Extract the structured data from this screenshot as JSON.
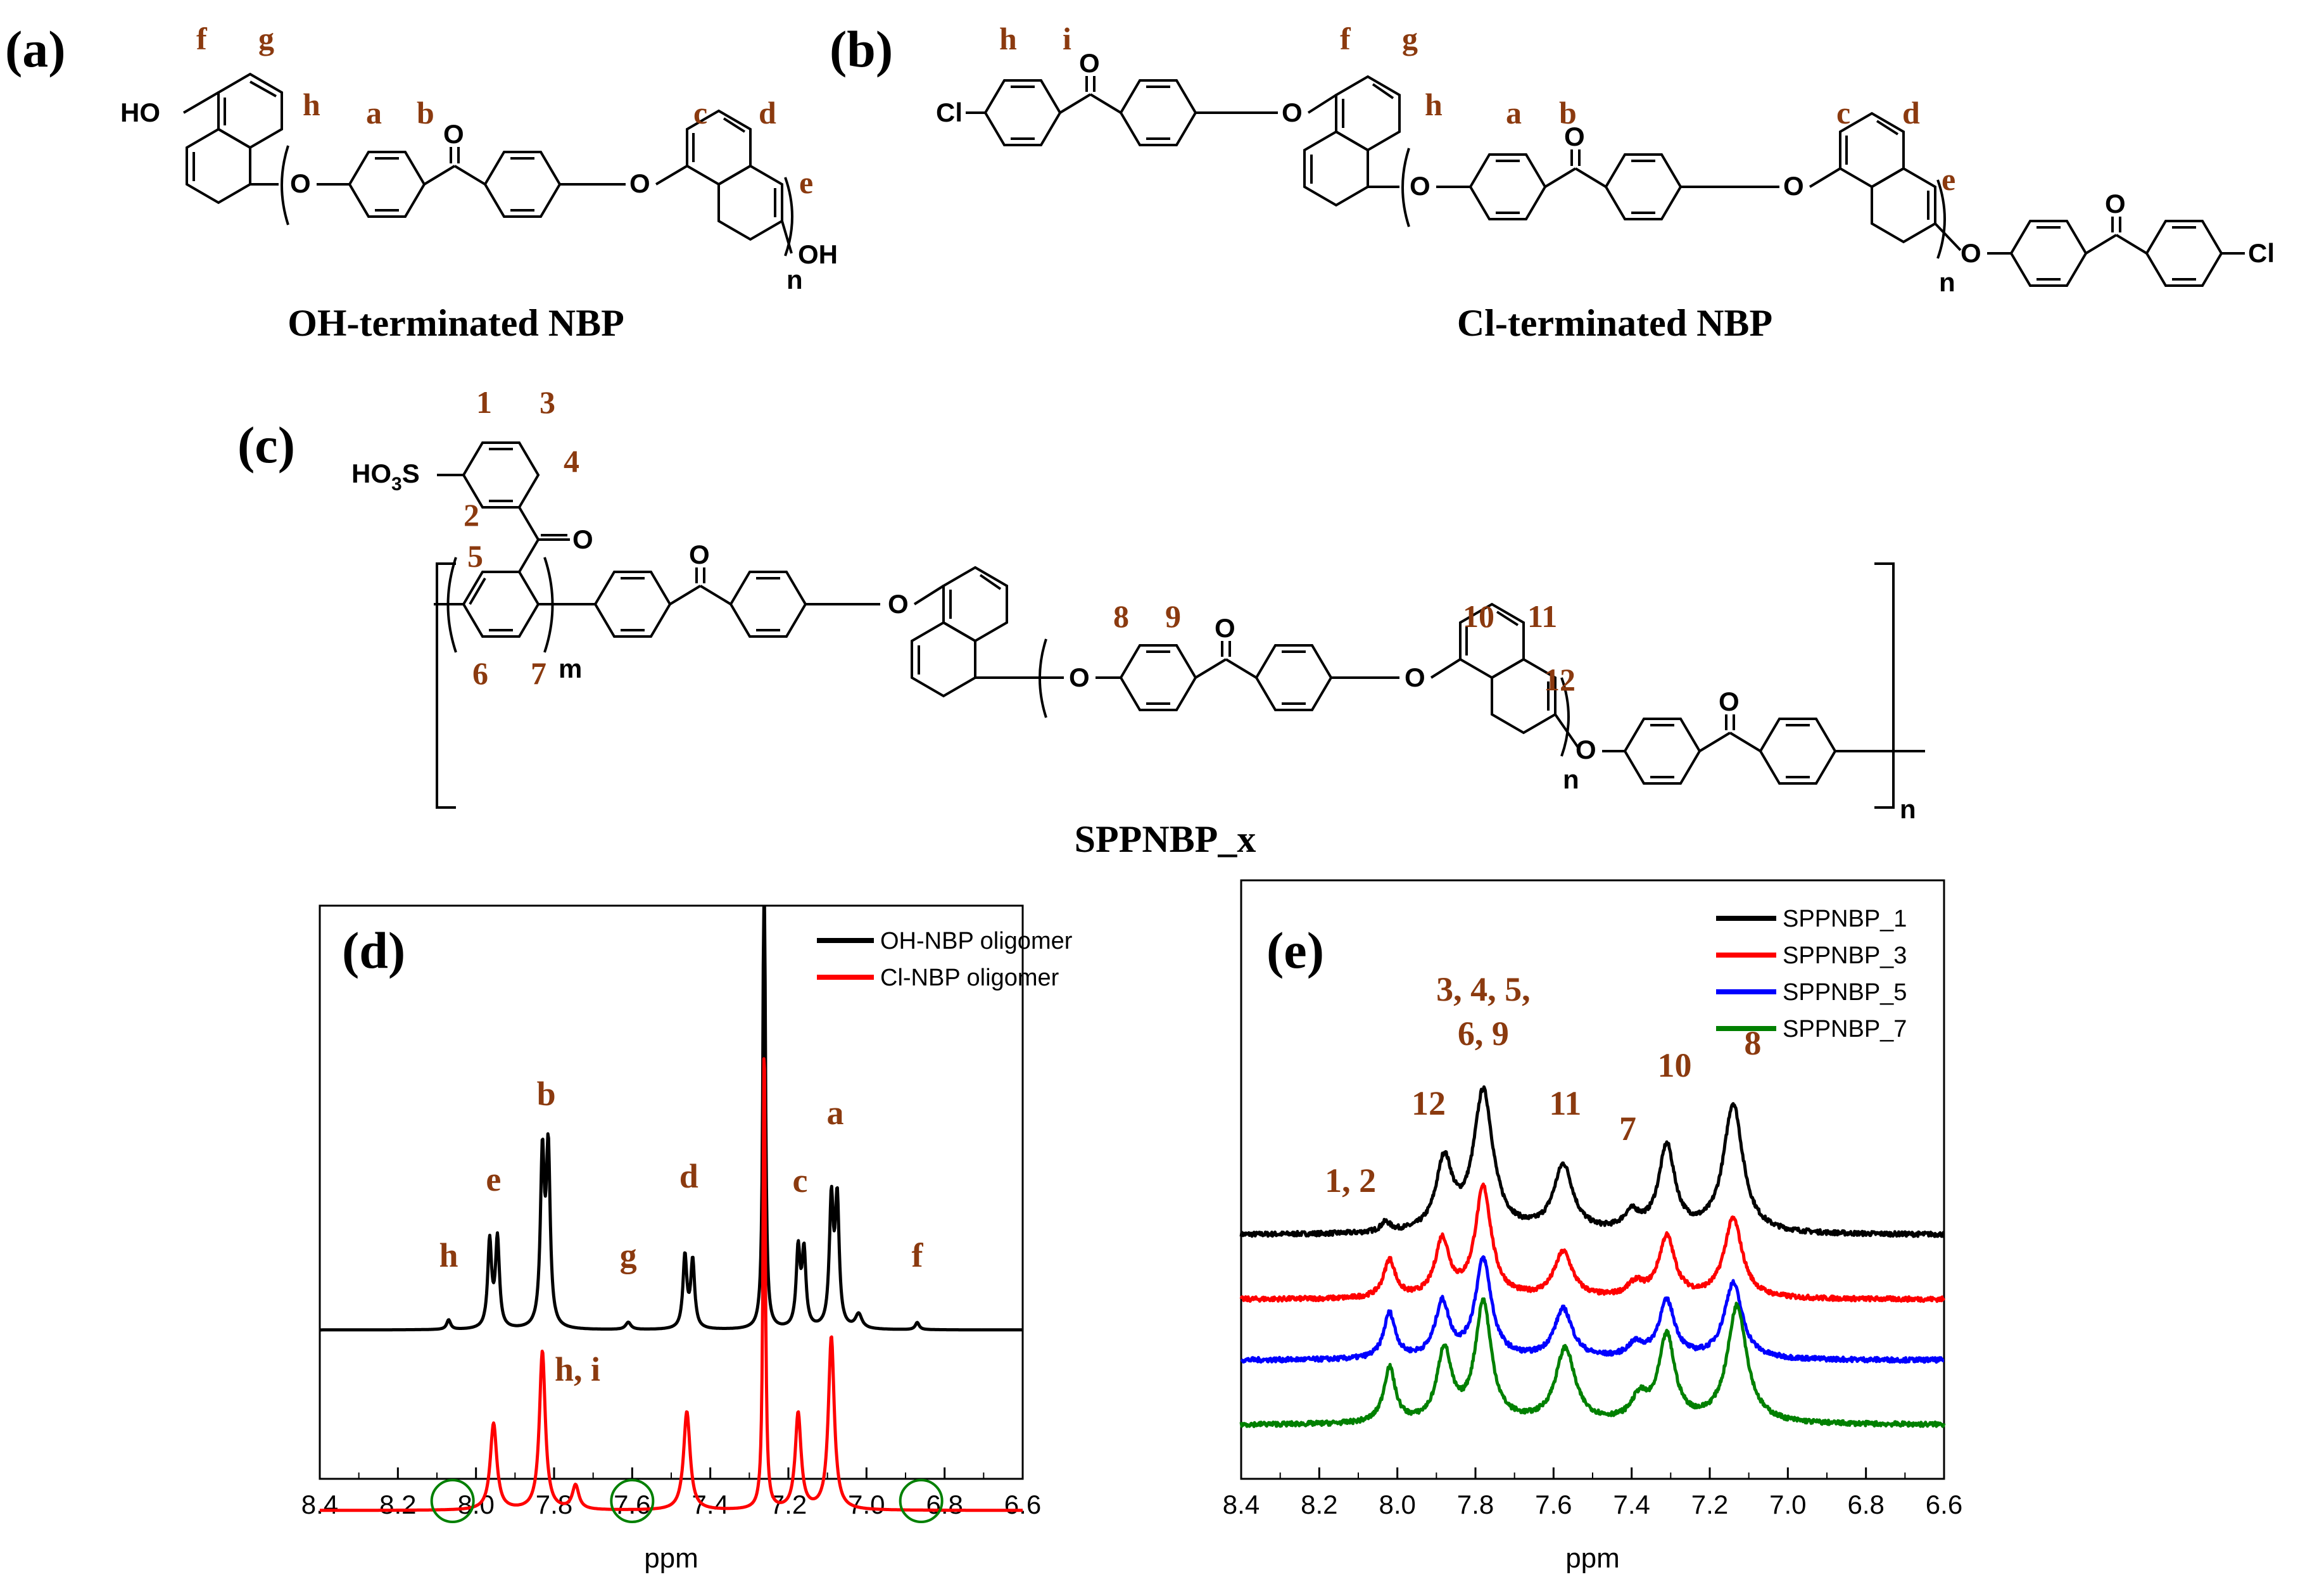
{
  "panels": {
    "a": {
      "label": "(a)",
      "name": "OH-terminated NBP",
      "atoms": [
        "f",
        "g",
        "h",
        "a",
        "b",
        "c",
        "d",
        "e"
      ],
      "groups": {
        "ho": "HO",
        "oh": "OH",
        "o": "O",
        "n": "n"
      }
    },
    "b": {
      "label": "(b)",
      "name": "Cl-terminated NBP",
      "atoms": [
        "h",
        "i",
        "f",
        "g",
        "h",
        "a",
        "b",
        "c",
        "d",
        "e"
      ],
      "groups": {
        "cl": "Cl",
        "o": "O",
        "n": "n"
      }
    },
    "c": {
      "label": "(c)",
      "name": "SPPNBP_x",
      "atoms": [
        "1",
        "3",
        "4",
        "2",
        "5",
        "6",
        "7",
        "8",
        "9",
        "10",
        "11",
        "12"
      ],
      "groups": {
        "so3h": "HO",
        "so3h_sub": "3",
        "so3h_s": "S",
        "o": "O",
        "m": "m",
        "n": "n"
      }
    }
  },
  "chart_data": [
    {
      "type": "line",
      "panel": "(d)",
      "xlabel": "ppm",
      "ylabel": "",
      "xlim": [
        8.4,
        6.6
      ],
      "x_reversed": true,
      "xticks": [
        "8.4",
        "8.2",
        "8.0",
        "7.8",
        "7.6",
        "7.4",
        "7.2",
        "7.0",
        "6.8",
        "6.6"
      ],
      "legend": "top-right",
      "series": [
        {
          "name": "OH-NBP oligomer",
          "color": "#000000",
          "baseline": 0.0,
          "peaks": [
            {
              "ppm": 8.07,
              "height": 0.04,
              "width": 0.006
            },
            {
              "ppm": 7.965,
              "height": 0.36,
              "width": 0.006
            },
            {
              "ppm": 7.945,
              "height": 0.37,
              "width": 0.006
            },
            {
              "ppm": 7.83,
              "height": 0.7,
              "width": 0.006
            },
            {
              "ppm": 7.815,
              "height": 0.72,
              "width": 0.006
            },
            {
              "ppm": 7.61,
              "height": 0.03,
              "width": 0.008
            },
            {
              "ppm": 7.465,
              "height": 0.3,
              "width": 0.006
            },
            {
              "ppm": 7.445,
              "height": 0.28,
              "width": 0.006
            },
            {
              "ppm": 7.262,
              "height": 2.2,
              "width": 0.0035
            },
            {
              "ppm": 7.175,
              "height": 0.32,
              "width": 0.006
            },
            {
              "ppm": 7.16,
              "height": 0.31,
              "width": 0.006
            },
            {
              "ppm": 7.09,
              "height": 0.52,
              "width": 0.006
            },
            {
              "ppm": 7.075,
              "height": 0.52,
              "width": 0.006
            },
            {
              "ppm": 7.02,
              "height": 0.06,
              "width": 0.01
            },
            {
              "ppm": 6.87,
              "height": 0.03,
              "width": 0.006
            }
          ]
        },
        {
          "name": "Cl-NBP oligomer",
          "color": "#ff0000",
          "baseline": -0.75,
          "peaks": [
            {
              "ppm": 7.955,
              "height": 0.36,
              "width": 0.01
            },
            {
              "ppm": 7.83,
              "height": 0.66,
              "width": 0.009
            },
            {
              "ppm": 7.745,
              "height": 0.1,
              "width": 0.01
            },
            {
              "ppm": 7.46,
              "height": 0.41,
              "width": 0.01
            },
            {
              "ppm": 7.262,
              "height": 1.95,
              "width": 0.0035
            },
            {
              "ppm": 7.175,
              "height": 0.4,
              "width": 0.009
            },
            {
              "ppm": 7.09,
              "height": 0.72,
              "width": 0.009
            }
          ]
        }
      ],
      "annotations": [
        {
          "text": "h",
          "ppm": 8.07
        },
        {
          "text": "e",
          "ppm": 7.955
        },
        {
          "text": "b",
          "ppm": 7.82
        },
        {
          "text": "g",
          "ppm": 7.61
        },
        {
          "text": "d",
          "ppm": 7.455
        },
        {
          "text": "c",
          "ppm": 7.17
        },
        {
          "text": "a",
          "ppm": 7.08
        },
        {
          "text": "f",
          "ppm": 6.87
        },
        {
          "text": "h, i",
          "ppm": 7.74
        }
      ],
      "circles_ppm": [
        8.06,
        7.6,
        6.86
      ]
    },
    {
      "type": "line",
      "panel": "(e)",
      "xlabel": "ppm",
      "ylabel": "",
      "xlim": [
        8.4,
        6.6
      ],
      "x_reversed": true,
      "xticks": [
        "8.4",
        "8.2",
        "8.0",
        "7.8",
        "7.6",
        "7.4",
        "7.2",
        "7.0",
        "6.8",
        "6.6"
      ],
      "legend": "top-right",
      "series": [
        {
          "name": "SPPNBP_1",
          "color": "#000000",
          "offset": 1.0,
          "peaks": [
            {
              "ppm": 8.03,
              "height": 0.05,
              "width": 0.015
            },
            {
              "ppm": 7.88,
              "height": 0.37,
              "width": 0.025
            },
            {
              "ppm": 7.78,
              "height": 0.74,
              "width": 0.03
            },
            {
              "ppm": 7.575,
              "height": 0.35,
              "width": 0.03
            },
            {
              "ppm": 7.4,
              "height": 0.09,
              "width": 0.025
            },
            {
              "ppm": 7.31,
              "height": 0.45,
              "width": 0.025
            },
            {
              "ppm": 7.14,
              "height": 0.68,
              "width": 0.03
            }
          ]
        },
        {
          "name": "SPPNBP_3",
          "color": "#ff0000",
          "offset": 0.66,
          "peaks": [
            {
              "ppm": 8.02,
              "height": 0.2,
              "width": 0.018
            },
            {
              "ppm": 7.885,
              "height": 0.3,
              "width": 0.022
            },
            {
              "ppm": 7.78,
              "height": 0.58,
              "width": 0.025
            },
            {
              "ppm": 7.575,
              "height": 0.24,
              "width": 0.028
            },
            {
              "ppm": 7.39,
              "height": 0.07,
              "width": 0.025
            },
            {
              "ppm": 7.31,
              "height": 0.32,
              "width": 0.025
            },
            {
              "ppm": 7.14,
              "height": 0.42,
              "width": 0.028
            }
          ]
        },
        {
          "name": "SPPNBP_5",
          "color": "#0000ff",
          "offset": 0.34,
          "peaks": [
            {
              "ppm": 8.02,
              "height": 0.24,
              "width": 0.018
            },
            {
              "ppm": 7.885,
              "height": 0.29,
              "width": 0.022
            },
            {
              "ppm": 7.78,
              "height": 0.52,
              "width": 0.025
            },
            {
              "ppm": 7.575,
              "height": 0.26,
              "width": 0.028
            },
            {
              "ppm": 7.39,
              "height": 0.07,
              "width": 0.025
            },
            {
              "ppm": 7.31,
              "height": 0.3,
              "width": 0.025
            },
            {
              "ppm": 7.14,
              "height": 0.4,
              "width": 0.028
            }
          ]
        },
        {
          "name": "SPPNBP_7",
          "color": "#008000",
          "offset": 0.0,
          "peaks": [
            {
              "ppm": 8.02,
              "height": 0.29,
              "width": 0.018
            },
            {
              "ppm": 7.88,
              "height": 0.38,
              "width": 0.022
            },
            {
              "ppm": 7.78,
              "height": 0.63,
              "width": 0.025
            },
            {
              "ppm": 7.57,
              "height": 0.39,
              "width": 0.03
            },
            {
              "ppm": 7.38,
              "height": 0.12,
              "width": 0.025
            },
            {
              "ppm": 7.31,
              "height": 0.45,
              "width": 0.025
            },
            {
              "ppm": 7.13,
              "height": 0.62,
              "width": 0.03
            }
          ]
        }
      ],
      "annotations": [
        {
          "text": "1, 2",
          "ppm": 8.12
        },
        {
          "text": "12",
          "ppm": 7.92
        },
        {
          "text": "3, 4, 5,",
          "ppm": 7.78
        },
        {
          "text": "6, 9",
          "ppm": 7.78
        },
        {
          "text": "11",
          "ppm": 7.57
        },
        {
          "text": "7",
          "ppm": 7.41
        },
        {
          "text": "10",
          "ppm": 7.29
        },
        {
          "text": "8",
          "ppm": 7.09
        }
      ]
    }
  ]
}
